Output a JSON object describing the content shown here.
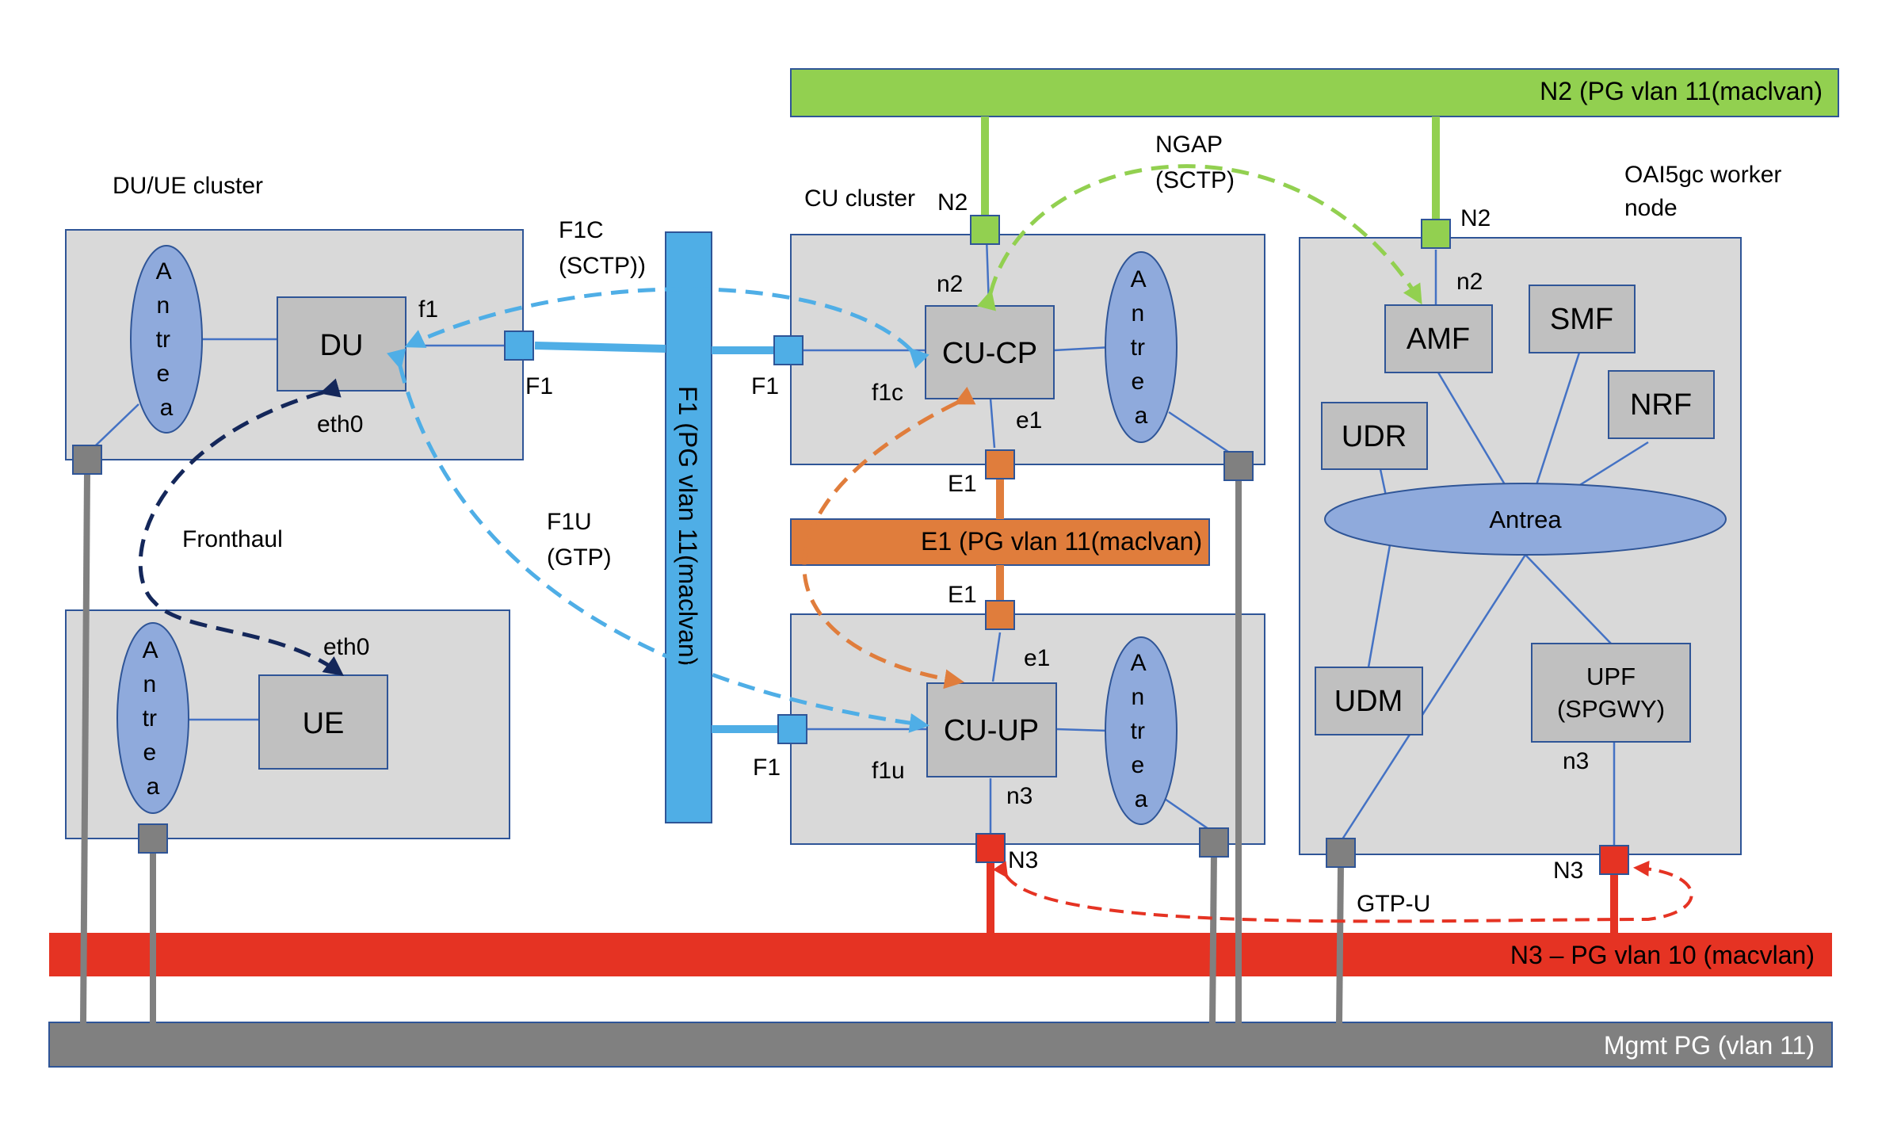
{
  "colors": {
    "n2_bus": "#92d050",
    "f1_bus": "#4faee6",
    "e1_bus": "#e07d3c",
    "n3_bus": "#e53323",
    "mgmt_bus": "#808080",
    "cluster_fill": "#d9d9d9",
    "cluster_border": "#2f5597",
    "box_fill": "#c0c0c0",
    "antrea_fill": "#8faadc",
    "link_line": "#4472c4",
    "fronthaul": "#14275a"
  },
  "buses": {
    "n2": "N2 (PG vlan 11(maclvan)",
    "f1": "F1  (PG vlan 11(maclvan)",
    "e1": "E1 (PG vlan 11(maclvan)",
    "n3": "N3 – PG vlan 10 (macvlan)",
    "mgmt": "Mgmt PG (vlan 11)"
  },
  "clusters": {
    "du_ue": "DU/UE cluster",
    "cu": "CU cluster",
    "oai": "OAI5gc worker node"
  },
  "nodes": {
    "du": "DU",
    "ue": "UE",
    "cucp": "CU-CP",
    "cuup": "CU-UP",
    "amf": "AMF",
    "smf": "SMF",
    "nrf": "NRF",
    "udr": "UDR",
    "udm": "UDM",
    "upf_line1": "UPF",
    "upf_line2": "(SPGWY)",
    "antrea_letters": [
      "A",
      "n",
      "tr",
      "e",
      "a"
    ],
    "antrea_5gc": "Antrea"
  },
  "labels": {
    "f1_du": "f1",
    "F1_du": "F1",
    "eth0_du": "eth0",
    "eth0_ue": "eth0",
    "F1_cucp": "F1",
    "f1c": "f1c",
    "n2_cucp": "n2",
    "N2_cucp": "N2",
    "e1_cucp": "e1",
    "E1_top": "E1",
    "E1_bottom": "E1",
    "e1_cuup": "e1",
    "F1_cuup": "F1",
    "f1u": "f1u",
    "n3_cuup": "n3",
    "N3_cuup": "N3",
    "N2_amf": "N2",
    "n2_amf": "n2",
    "n3_upf": "n3",
    "N3_upf": "N3"
  },
  "flows": {
    "f1c_line1": "F1C",
    "f1c_line2": "(SCTP))",
    "f1u_line1": "F1U",
    "f1u_line2": "(GTP)",
    "ngap_line1": "NGAP",
    "ngap_line2": "(SCTP)",
    "fronthaul": "Fronthaul",
    "gtpu": "GTP-U"
  }
}
